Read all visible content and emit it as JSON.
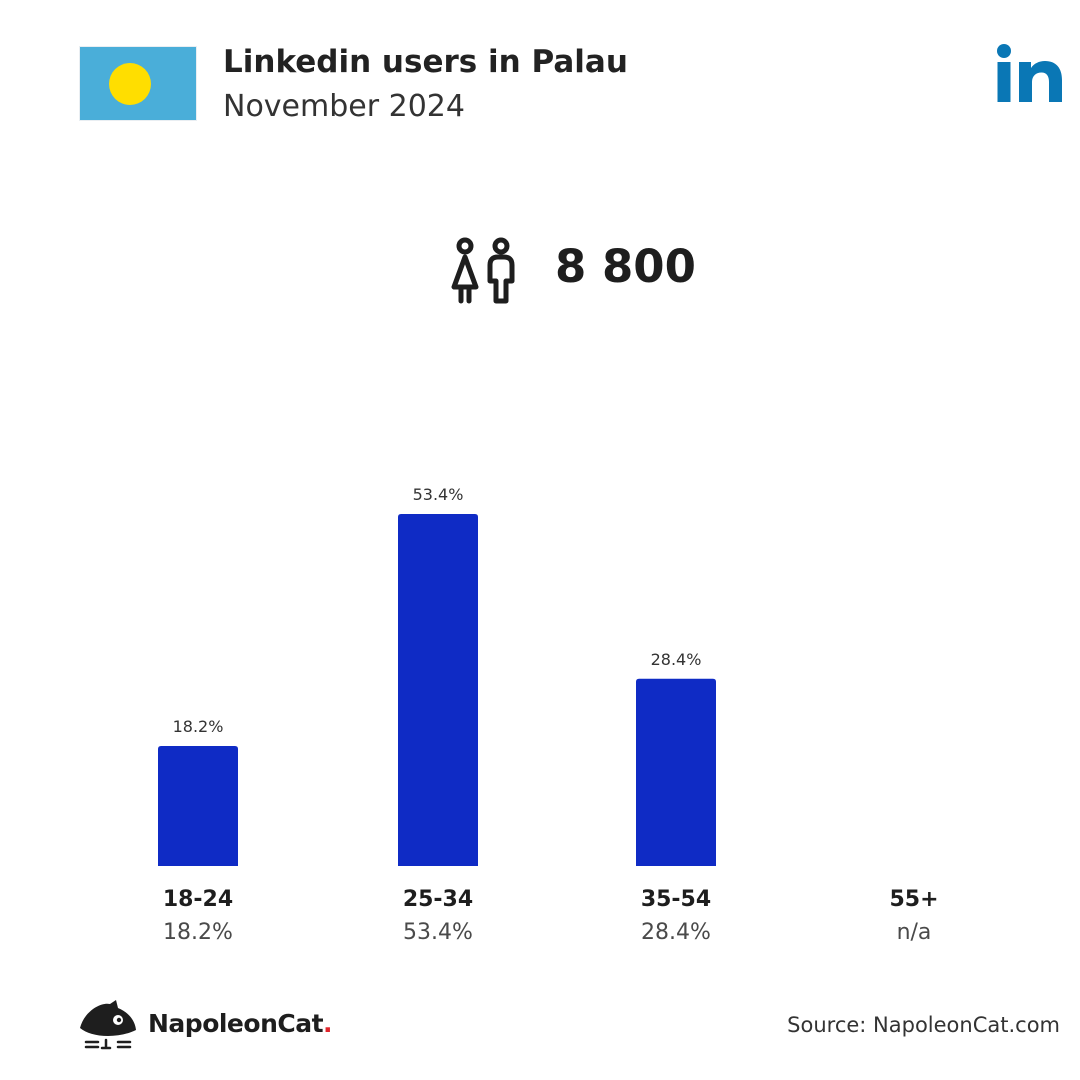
{
  "header": {
    "title": "Linkedin users in Palau",
    "subtitle": "November 2024"
  },
  "summary": {
    "total_users": "8 800"
  },
  "colors": {
    "bar": "#0f2bc5",
    "flag_blue": "#4aaed9",
    "flag_sun": "#ffde00",
    "linkedin_blue": "#0a77b5",
    "text_dark": "#1e1e1e",
    "text_muted": "#4a4a4a",
    "brand_dot": "#e0252b"
  },
  "icons": {
    "flag": "palau-flag-icon",
    "platform": "linkedin-logo-icon",
    "users": "users-icon",
    "brand": "napoleoncat-logo-icon"
  },
  "chart_data": {
    "type": "bar",
    "categories": [
      "18-24",
      "25-34",
      "35-54",
      "55+"
    ],
    "values": [
      18.2,
      53.4,
      28.4,
      null
    ],
    "value_labels": [
      "18.2%",
      "53.4%",
      "28.4%",
      "n/a"
    ],
    "ylim": [
      0,
      53.4
    ],
    "grid": false
  },
  "footer": {
    "brand_name": "NapoleonCat",
    "brand_dot": ".",
    "source": "Source: NapoleonCat.com"
  }
}
